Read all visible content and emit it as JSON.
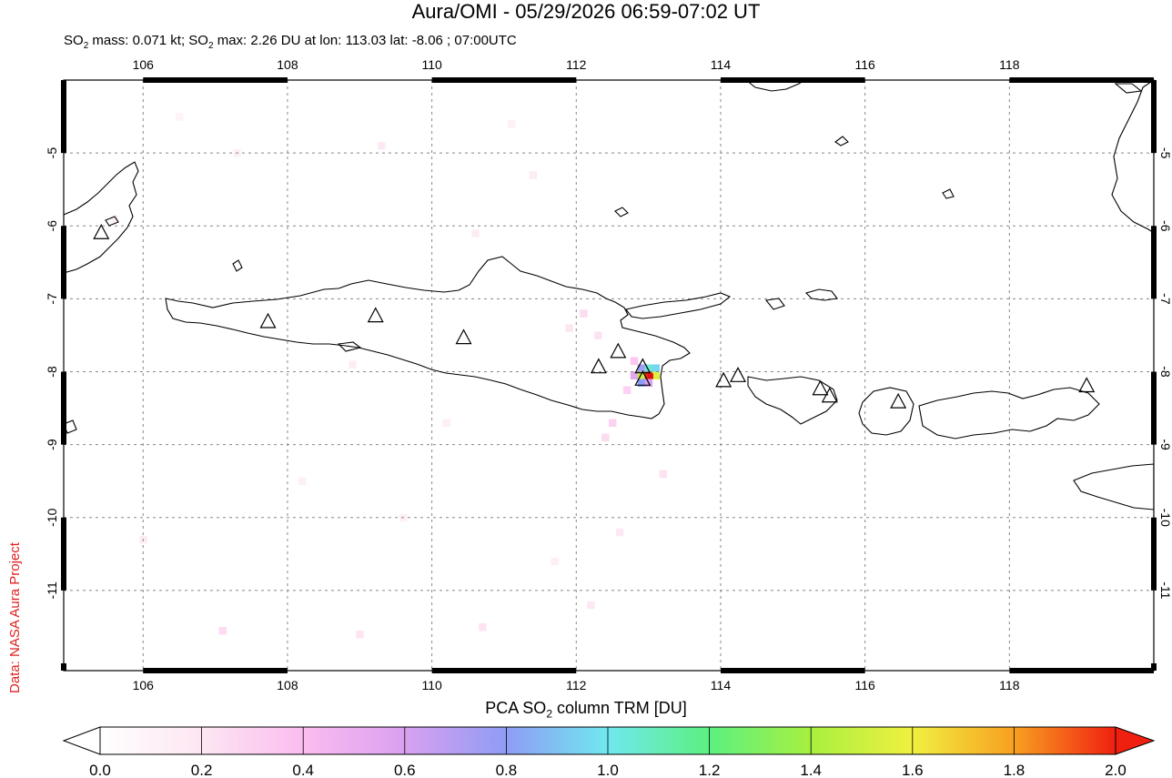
{
  "title": "Aura/OMI - 05/29/2026 06:59-07:02 UT",
  "subtitle": {
    "prefix": "SO",
    "sub": "2",
    "mid": " mass: 0.071 kt; SO",
    "sub2": "2",
    "rest": " max: 2.26 DU at lon: 113.03 lat: -8.06 ; 07:00UTC"
  },
  "side_credit": "Data: NASA Aura Project",
  "colorbar": {
    "title_prefix": "PCA SO",
    "title_sub": "2",
    "title_rest": " column TRM [DU]",
    "ticks": [
      "0.0",
      "0.2",
      "0.4",
      "0.6",
      "0.8",
      "1.0",
      "1.2",
      "1.4",
      "1.6",
      "1.8",
      "2.0"
    ],
    "range": [
      0.0,
      2.0
    ],
    "stops": [
      "#ffffff",
      "#fde6f2",
      "#fbbcef",
      "#d9a0f0",
      "#8f9cf5",
      "#70e8f0",
      "#5cf080",
      "#a8f040",
      "#f0f040",
      "#f8a020",
      "#f02010"
    ]
  },
  "map": {
    "lon_range": [
      104.9,
      120.0
    ],
    "lat_range": [
      -12.1,
      -4.0
    ],
    "lon_ticks": [
      "106",
      "108",
      "110",
      "112",
      "114",
      "116",
      "118"
    ],
    "lat_ticks": [
      "-5",
      "-6",
      "-7",
      "-8",
      "-9",
      "-10",
      "-11"
    ],
    "max_point": {
      "lon": 113.03,
      "lat": -8.06,
      "value": 2.26
    },
    "volcanoes": [
      {
        "lon": 105.42,
        "lat": -6.1
      },
      {
        "lon": 107.73,
        "lat": -7.32
      },
      {
        "lon": 109.22,
        "lat": -7.24
      },
      {
        "lon": 110.44,
        "lat": -7.54
      },
      {
        "lon": 112.31,
        "lat": -7.94
      },
      {
        "lon": 112.58,
        "lat": -7.73
      },
      {
        "lon": 112.92,
        "lat": -7.94
      },
      {
        "lon": 112.92,
        "lat": -8.11
      },
      {
        "lon": 114.04,
        "lat": -8.13
      },
      {
        "lon": 114.24,
        "lat": -8.06
      },
      {
        "lon": 115.38,
        "lat": -8.24
      },
      {
        "lon": 115.51,
        "lat": -8.34
      },
      {
        "lon": 116.46,
        "lat": -8.42
      },
      {
        "lon": 119.07,
        "lat": -8.2
      }
    ],
    "so2_cells": [
      {
        "lon": 112.9,
        "lat": -7.95,
        "value": 0.75
      },
      {
        "lon": 113.0,
        "lat": -7.95,
        "value": 1.05
      },
      {
        "lon": 113.1,
        "lat": -7.95,
        "value": 0.95
      },
      {
        "lon": 112.8,
        "lat": -8.05,
        "value": 0.55
      },
      {
        "lon": 112.9,
        "lat": -8.05,
        "value": 1.5
      },
      {
        "lon": 113.0,
        "lat": -8.05,
        "value": 2.0
      },
      {
        "lon": 113.1,
        "lat": -8.05,
        "value": 1.55
      },
      {
        "lon": 112.9,
        "lat": -8.15,
        "value": 0.8
      },
      {
        "lon": 113.0,
        "lat": -8.15,
        "value": 0.6
      },
      {
        "lon": 112.8,
        "lat": -7.85,
        "value": 0.35
      },
      {
        "lon": 112.7,
        "lat": -8.25,
        "value": 0.3
      },
      {
        "lon": 112.5,
        "lat": -8.7,
        "value": 0.3
      },
      {
        "lon": 112.4,
        "lat": -8.9,
        "value": 0.25
      },
      {
        "lon": 112.1,
        "lat": -7.2,
        "value": 0.25
      },
      {
        "lon": 111.9,
        "lat": -7.4,
        "value": 0.2
      },
      {
        "lon": 112.3,
        "lat": -7.5,
        "value": 0.22
      },
      {
        "lon": 110.6,
        "lat": -6.1,
        "value": 0.15
      },
      {
        "lon": 108.9,
        "lat": -7.9,
        "value": 0.15
      },
      {
        "lon": 109.3,
        "lat": -4.9,
        "value": 0.18
      },
      {
        "lon": 111.4,
        "lat": -5.3,
        "value": 0.15
      },
      {
        "lon": 110.7,
        "lat": -11.5,
        "value": 0.22
      },
      {
        "lon": 109.0,
        "lat": -11.6,
        "value": 0.2
      },
      {
        "lon": 107.1,
        "lat": -11.55,
        "value": 0.25
      },
      {
        "lon": 106.0,
        "lat": -10.3,
        "value": 0.15
      },
      {
        "lon": 108.2,
        "lat": -9.5,
        "value": 0.12
      },
      {
        "lon": 112.6,
        "lat": -10.2,
        "value": 0.18
      },
      {
        "lon": 112.2,
        "lat": -11.2,
        "value": 0.18
      },
      {
        "lon": 113.2,
        "lat": -9.4,
        "value": 0.22
      },
      {
        "lon": 111.7,
        "lat": -10.6,
        "value": 0.14
      },
      {
        "lon": 105.6,
        "lat": -5.9,
        "value": 0.12
      },
      {
        "lon": 107.3,
        "lat": -5.0,
        "value": 0.12
      },
      {
        "lon": 110.2,
        "lat": -8.7,
        "value": 0.14
      },
      {
        "lon": 109.6,
        "lat": -10.0,
        "value": 0.12
      },
      {
        "lon": 111.1,
        "lat": -4.6,
        "value": 0.12
      },
      {
        "lon": 106.5,
        "lat": -4.5,
        "value": 0.1
      }
    ]
  }
}
